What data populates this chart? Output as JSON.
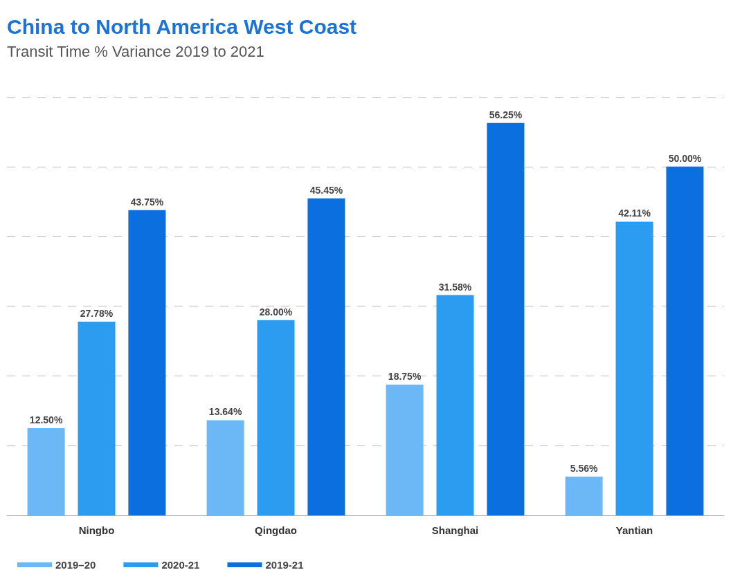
{
  "chart_data": {
    "type": "bar",
    "title": "China to North America West Coast",
    "subtitle": "Transit Time % Variance 2019 to 2021",
    "categories": [
      "Ningbo",
      "Qingdao",
      "Shanghai",
      "Yantian"
    ],
    "series": [
      {
        "name": "2019–20",
        "color": "#6cb8f6",
        "values": [
          12.5,
          13.64,
          18.75,
          5.56
        ],
        "value_labels": [
          "12.50%",
          "13.64%",
          "18.75%",
          "5.56%"
        ]
      },
      {
        "name": "2020-21",
        "color": "#2b9cf0",
        "values": [
          27.78,
          28.0,
          31.58,
          42.11
        ],
        "value_labels": [
          "27.78%",
          "28.00%",
          "31.58%",
          "42.11%"
        ]
      },
      {
        "name": "2019-21",
        "color": "#0b6fe0",
        "values": [
          43.75,
          45.45,
          56.25,
          50.0
        ],
        "value_labels": [
          "43.75%",
          "45.45%",
          "56.25%",
          "50.00%"
        ]
      }
    ],
    "tick_labels": "x",
    "grid": "y",
    "legend": "bottom left"
  }
}
